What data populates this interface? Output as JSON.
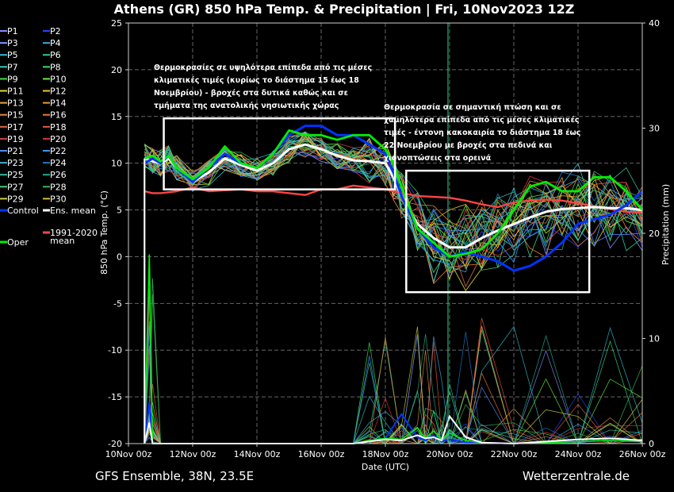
{
  "chart_data": {
    "type": "line",
    "title": "Athens  (GR)  850 hPa Temp. & Precipitation | Fri, 10Nov2023 12Z",
    "ylabel": "850 hPa Temp. (°C)",
    "y2label": "Precipitation (mm)",
    "xlabel": "Date (UTC)",
    "ylim": [
      -20,
      25
    ],
    "y2lim": [
      0,
      40
    ],
    "xlim": [
      0,
      16
    ],
    "yticks": [
      "25",
      "20",
      "15",
      "10",
      "5",
      "0",
      "-5",
      "-10",
      "-15",
      "-20"
    ],
    "y2ticks": [
      "40",
      "30",
      "20",
      "10",
      "0"
    ],
    "xticks": [
      "10Nov 00z",
      "12Nov 00z",
      "14Nov 00z",
      "16Nov 00z",
      "18Nov 00z",
      "20Nov 00z",
      "22Nov 00z",
      "24Nov 00z",
      "26Nov 00z"
    ],
    "grid": true,
    "legend_position": "left",
    "legend": [
      {
        "name": "P1",
        "color": "#8888ff"
      },
      {
        "name": "P2",
        "color": "#2244ff"
      },
      {
        "name": "P3",
        "color": "#7799ff"
      },
      {
        "name": "P4",
        "color": "#33aadd"
      },
      {
        "name": "P5",
        "color": "#33bbcc"
      },
      {
        "name": "P6",
        "color": "#22cc99"
      },
      {
        "name": "P7",
        "color": "#33ccaa"
      },
      {
        "name": "P8",
        "color": "#33dd77"
      },
      {
        "name": "P9",
        "color": "#44dd44"
      },
      {
        "name": "P10",
        "color": "#66ee33"
      },
      {
        "name": "P11",
        "color": "#dddd33"
      },
      {
        "name": "P12",
        "color": "#eecc33"
      },
      {
        "name": "P13",
        "color": "#ddaa44"
      },
      {
        "name": "P14",
        "color": "#ee9933"
      },
      {
        "name": "P15",
        "color": "#dd8844"
      },
      {
        "name": "P16",
        "color": "#ee7733"
      },
      {
        "name": "P17",
        "color": "#dd6644"
      },
      {
        "name": "P18",
        "color": "#ee5544"
      },
      {
        "name": "P19",
        "color": "#cc4444"
      },
      {
        "name": "P20",
        "color": "#dd3333"
      },
      {
        "name": "P21",
        "color": "#5588ff"
      },
      {
        "name": "P22",
        "color": "#3399ff"
      },
      {
        "name": "P23",
        "color": "#44aacc"
      },
      {
        "name": "P24",
        "color": "#2277cc"
      },
      {
        "name": "P25",
        "color": "#33bb99"
      },
      {
        "name": "P26",
        "color": "#22aa88"
      },
      {
        "name": "P27",
        "color": "#44cc77"
      },
      {
        "name": "P28",
        "color": "#33bb55"
      },
      {
        "name": "P29",
        "color": "#cccc44"
      },
      {
        "name": "P30",
        "color": "#ddbb33"
      },
      {
        "name": "Control",
        "color": "#0033ff"
      },
      {
        "name": "Ens. mean",
        "color": "#ffffff"
      },
      {
        "name": "Oper",
        "color": "#00ee00"
      },
      {
        "name": "1991-2020 mean",
        "color": "#ff4444"
      }
    ],
    "series": [
      {
        "name": "Oper",
        "color": "#00ee00",
        "x": [
          0.5,
          0.75,
          1,
          1.25,
          1.5,
          2,
          2.5,
          3,
          3.5,
          4,
          4.5,
          5,
          5.5,
          6,
          6.5,
          7,
          7.5,
          8,
          8.25,
          8.5,
          9,
          9.5,
          10,
          10.5,
          11,
          11.5,
          12,
          12.5,
          13,
          13.5,
          14,
          14.5,
          15,
          15.5,
          16
        ],
        "y": [
          10.5,
          10.8,
          10.2,
          10.8,
          9.5,
          8.3,
          9.5,
          11.8,
          10,
          9.5,
          11,
          13.5,
          13,
          13,
          12.5,
          13,
          13,
          11.5,
          10,
          7.5,
          3,
          1.5,
          0,
          0.3,
          0.8,
          2.5,
          5,
          7.5,
          8,
          7,
          7,
          8.5,
          8.5,
          7,
          5
        ]
      },
      {
        "name": "Control",
        "color": "#0033ff",
        "x": [
          0.5,
          0.75,
          1,
          1.25,
          1.5,
          2,
          2.5,
          3,
          3.5,
          4,
          4.5,
          5,
          5.5,
          6,
          6.5,
          7,
          7.5,
          8,
          8.25,
          8.5,
          9,
          9.5,
          10,
          10.5,
          11,
          11.5,
          12,
          12.5,
          13,
          13.5,
          14,
          14.5,
          15,
          15.5,
          16
        ],
        "y": [
          10,
          10.5,
          10,
          10.8,
          9.5,
          8,
          9.5,
          11,
          10,
          9.5,
          11,
          13,
          14,
          14,
          13,
          13,
          12,
          11,
          9,
          6.5,
          3,
          1,
          0,
          0.5,
          0,
          -0.5,
          -1.5,
          -1,
          0,
          1.5,
          3.5,
          4,
          4.5,
          5.5,
          7
        ]
      },
      {
        "name": "Ens. mean",
        "color": "#ffffff",
        "x": [
          0.5,
          0.75,
          1,
          1.25,
          1.5,
          2,
          2.5,
          3,
          3.5,
          4,
          4.5,
          5,
          5.5,
          6,
          6.5,
          7,
          7.5,
          8,
          8.25,
          8.5,
          9,
          9.5,
          10,
          10.5,
          11,
          11.5,
          12,
          12.5,
          13,
          13.5,
          14,
          14.5,
          15,
          15.5,
          16
        ],
        "y": [
          10.5,
          10.2,
          10,
          10.5,
          9.5,
          8,
          9,
          10.5,
          9.8,
          9.2,
          10,
          11.5,
          12,
          11.5,
          10.8,
          10.3,
          10.2,
          10,
          8.5,
          6.5,
          3.5,
          2,
          1,
          1,
          2,
          2.8,
          3.5,
          4.2,
          4.8,
          5.1,
          5.2,
          5.3,
          5.2,
          5.2,
          5
        ]
      },
      {
        "name": "1991-2020 mean",
        "color": "#ff4444",
        "x": [
          0.5,
          0.75,
          1,
          1.5,
          2,
          2.5,
          3,
          3.5,
          4,
          4.5,
          5,
          5.5,
          6,
          6.5,
          7,
          7.5,
          8,
          8.5,
          9,
          9.5,
          10,
          10.5,
          11,
          11.5,
          12,
          12.5,
          13,
          13.5,
          14,
          14.5,
          15,
          15.5,
          16
        ],
        "y": [
          7,
          6.8,
          6.8,
          7,
          7.4,
          7,
          7.1,
          7.2,
          7,
          7,
          6.8,
          6.6,
          7.2,
          7.2,
          7.6,
          7.4,
          7.2,
          6.8,
          6.5,
          6.4,
          6.3,
          6,
          5.6,
          5.3,
          5.8,
          6,
          6.1,
          6,
          5.7,
          5.4,
          5.1,
          4.8,
          4.7
        ]
      }
    ],
    "precipitation": {
      "units": "mm",
      "x": [
        0.5,
        0.65,
        0.75,
        1,
        2,
        3,
        4,
        5,
        6,
        7,
        7.5,
        8,
        8.5,
        9,
        9.25,
        9.5,
        9.75,
        10,
        10.5,
        11,
        12,
        13,
        14,
        15,
        16
      ],
      "ens_mean": [
        0,
        2,
        0,
        0,
        0,
        0,
        0,
        0,
        0,
        0,
        0.2,
        0.4,
        0.3,
        0.8,
        0.5,
        0.6,
        0.3,
        2.6,
        0.6,
        0.1,
        0,
        0.2,
        0.4,
        0.5,
        0.3
      ],
      "oper": [
        0,
        18,
        0,
        0,
        0,
        0,
        0,
        0,
        0,
        0,
        0.3,
        0.5,
        0.4,
        1.5,
        0.5,
        1.2,
        0.4,
        1,
        0.3,
        0.1,
        0,
        0.1,
        0.2,
        0.3,
        0.2
      ],
      "control": [
        0,
        4,
        0,
        0,
        0,
        0,
        0,
        0,
        0,
        0,
        0.2,
        0.5,
        2.8,
        0.6,
        0.3,
        0.8,
        0.2,
        0.4,
        0.1,
        0.1,
        0,
        0.1,
        0.2,
        0.3,
        0.2
      ]
    },
    "annotations": [
      {
        "text": [
          "Θερμοκρασίες σε υψηλότερα επίπεδα από τις μέσες",
          "κλιματικές τιμές (κυρίως το διάστημα 15 έως 18",
          "Νοεμβρίου) - βροχές στα δυτικά καθώς και σε",
          "τμήματα της ανατολικής νησιωτικής χώρας"
        ],
        "box": {
          "x0": 1.1,
          "x1": 8.3,
          "y0": 7.2,
          "y1": 14.8
        }
      },
      {
        "text": [
          "Θερμοκρασία σε σημαντική πτώση και σε",
          "χαμηλότερα επίπεδα από τις μέσες κλιματικές",
          "τιμές - έντονη κακοκαιρία το διάστημα 18 έως",
          "22 Νοεμβρίου με βροχές στα πεδινά και",
          "χιονοπτώσεις στα ορεινά"
        ],
        "box": {
          "x0": 8.65,
          "x1": 14.35,
          "y0": -3.8,
          "y1": 9.2
        }
      }
    ]
  },
  "footer": {
    "left": "GFS Ensemble, 38N, 23.5E",
    "right": "Wetterzentrale.de"
  }
}
